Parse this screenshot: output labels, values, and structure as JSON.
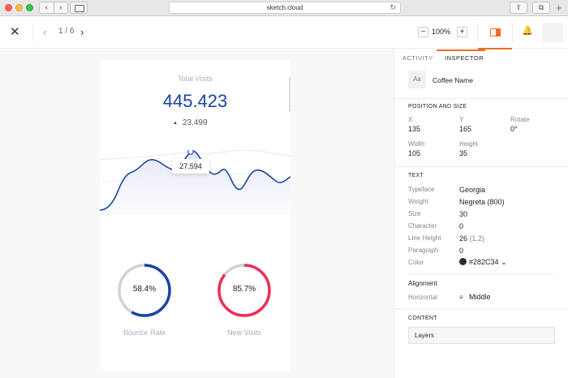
{
  "browser": {
    "url": "sketch.cloud",
    "nav_back": "‹",
    "nav_forward": "›",
    "reload": "↻",
    "share": "⇪",
    "tabs": "⧉",
    "new_tab": "+"
  },
  "toolbar": {
    "close": "✕",
    "prev": "‹",
    "next": "›",
    "pager": "1 / 6",
    "zoom_minus": "−",
    "zoom_value": "100%",
    "zoom_plus": "+",
    "bell": "🔔"
  },
  "artboard": {
    "total_label": "Total Visits",
    "total_value": "445.423",
    "delta_arrow": "▲",
    "delta_value": "23.499",
    "tooltip": "27.594",
    "bounce": {
      "label": "Bounce Rate",
      "value_text": "58.4%",
      "value": 58.4,
      "color": "#1b44a5",
      "track": "#cfd1dc"
    },
    "new_visits": {
      "label": "New Visits",
      "value_text": "85.7%",
      "value": 85.7,
      "color": "#ef2f55",
      "track": "#cfd1dc"
    },
    "line_color": "#1b44a5"
  },
  "inspector": {
    "tabs": {
      "activity": "ACTIVITY",
      "inspector": "INSPECTOR"
    },
    "layer": {
      "thumb": "Aa",
      "name": "Coffee Name"
    },
    "position": {
      "title": "POSITION AND SIZE",
      "x_label": "X",
      "x": "135",
      "y_label": "Y",
      "y": "165",
      "rotate_label": "Rotate",
      "rotate": "0°",
      "width_label": "Width",
      "width": "105",
      "height_label": "Height",
      "height": "35"
    },
    "text": {
      "title": "TEXT",
      "typeface_label": "Typeface",
      "typeface": "Georgia",
      "weight_label": "Weight",
      "weight": "Negreta (800)",
      "size_label": "Size",
      "size": "30",
      "character_label": "Character",
      "character": "0",
      "line_height_label": "Line Height",
      "line_height": "26",
      "line_height_ratio": "(1,2)",
      "paragraph_label": "Paragraph",
      "paragraph": "0",
      "color_label": "Color",
      "color": "#282C34",
      "color_chevron": "⌄"
    },
    "alignment": {
      "title": "Alignment",
      "horizontal_label": "Horizontal",
      "horizontal_icon": "≡",
      "horizontal": "Middle"
    },
    "content": {
      "title": "CONTENT",
      "layers": "Layers"
    }
  }
}
